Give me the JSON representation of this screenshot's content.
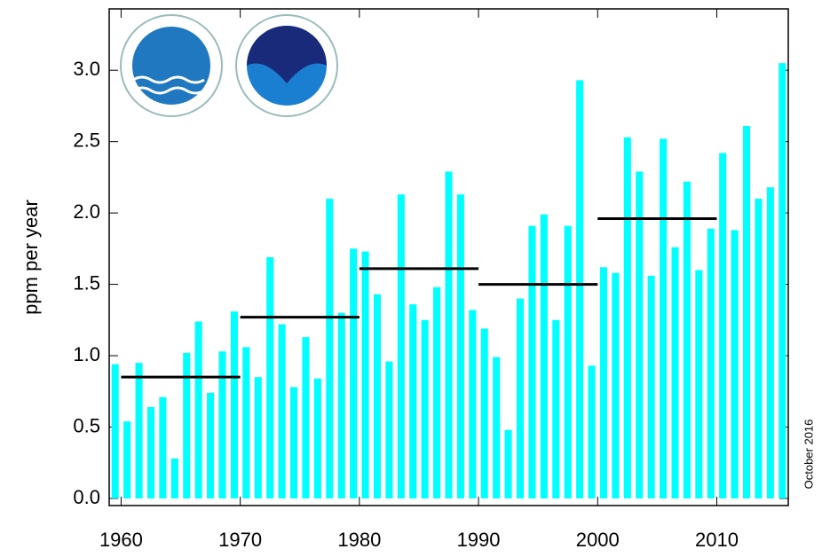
{
  "chart_data": {
    "type": "bar",
    "y_label": "ppm per year",
    "note": "October 2016",
    "color": "#00ffff",
    "x": [
      1959,
      1960,
      1961,
      1962,
      1963,
      1964,
      1965,
      1966,
      1967,
      1968,
      1969,
      1970,
      1971,
      1972,
      1973,
      1974,
      1975,
      1976,
      1977,
      1978,
      1979,
      1980,
      1981,
      1982,
      1983,
      1984,
      1985,
      1986,
      1987,
      1988,
      1989,
      1990,
      1991,
      1992,
      1993,
      1994,
      1995,
      1996,
      1997,
      1998,
      1999,
      2000,
      2001,
      2002,
      2003,
      2004,
      2005,
      2006,
      2007,
      2008,
      2009,
      2010,
      2011,
      2012,
      2013,
      2014,
      2015
    ],
    "values": [
      0.94,
      0.54,
      0.95,
      0.64,
      0.71,
      0.28,
      1.02,
      1.24,
      0.74,
      1.03,
      1.31,
      1.06,
      0.85,
      1.69,
      1.22,
      0.78,
      1.13,
      0.84,
      2.1,
      1.3,
      1.75,
      1.73,
      1.43,
      0.96,
      2.13,
      1.36,
      1.25,
      1.48,
      2.29,
      2.13,
      1.32,
      1.19,
      0.99,
      0.48,
      1.4,
      1.91,
      1.99,
      1.25,
      1.91,
      2.93,
      0.93,
      1.62,
      1.58,
      2.53,
      2.29,
      1.56,
      2.52,
      1.76,
      2.22,
      1.6,
      1.89,
      2.42,
      1.88,
      2.61,
      2.1,
      2.18,
      3.05
    ],
    "decade_means": [
      {
        "start": 1960,
        "end": 1970,
        "value": 0.85
      },
      {
        "start": 1970,
        "end": 1980,
        "value": 1.27
      },
      {
        "start": 1980,
        "end": 1990,
        "value": 1.61
      },
      {
        "start": 1990,
        "end": 2000,
        "value": 1.5
      },
      {
        "start": 2000,
        "end": 2010,
        "value": 1.96
      }
    ],
    "xlim": [
      1959,
      2016
    ],
    "xticks": [
      1960,
      1970,
      1980,
      1990,
      2000,
      2010
    ],
    "ylim": [
      -0.05,
      3.43
    ],
    "yticks": [
      {
        "value": 0,
        "label": "0.0"
      },
      {
        "value": 0.5,
        "label": "0.5"
      },
      {
        "value": 1,
        "label": "1.0"
      },
      {
        "value": 1.5,
        "label": "1.5"
      },
      {
        "value": 2,
        "label": "2.0"
      },
      {
        "value": 2.5,
        "label": "2.5"
      },
      {
        "value": 3,
        "label": "3.0"
      }
    ]
  }
}
